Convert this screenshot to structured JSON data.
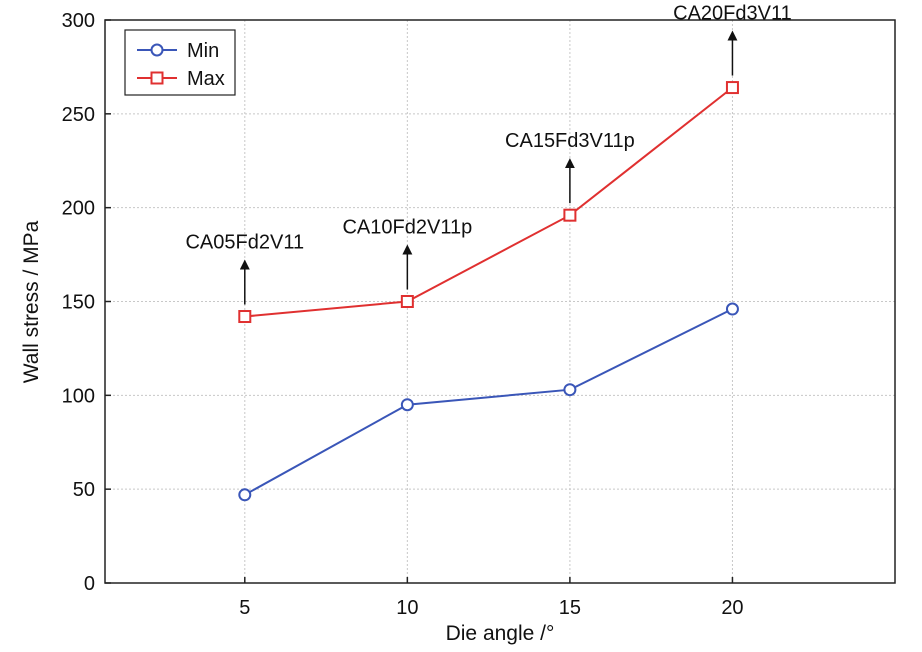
{
  "chart_data": {
    "type": "line",
    "xlabel": "Die angle /°",
    "ylabel": "Wall stress / MPa",
    "x": [
      5,
      10,
      15,
      20
    ],
    "xlim": [
      0.7,
      25
    ],
    "ylim": [
      0,
      300
    ],
    "xticks": [
      5,
      10,
      15,
      20
    ],
    "yticks": [
      0,
      50,
      100,
      150,
      200,
      250,
      300
    ],
    "grid": true,
    "legend": "top-left",
    "series": [
      {
        "name": "Min",
        "values": [
          47,
          95,
          103,
          146
        ],
        "color": "#3a56b8",
        "marker": "circle"
      },
      {
        "name": "Max",
        "values": [
          142,
          150,
          196,
          264
        ],
        "color": "#e03030",
        "marker": "square"
      }
    ],
    "annotations": [
      {
        "text": "CA05Fd2V11",
        "x": 5
      },
      {
        "text": "CA10Fd2V11p",
        "x": 10
      },
      {
        "text": "CA15Fd3V11p",
        "x": 15
      },
      {
        "text": "CA20Fd3V11",
        "x": 20
      }
    ]
  }
}
